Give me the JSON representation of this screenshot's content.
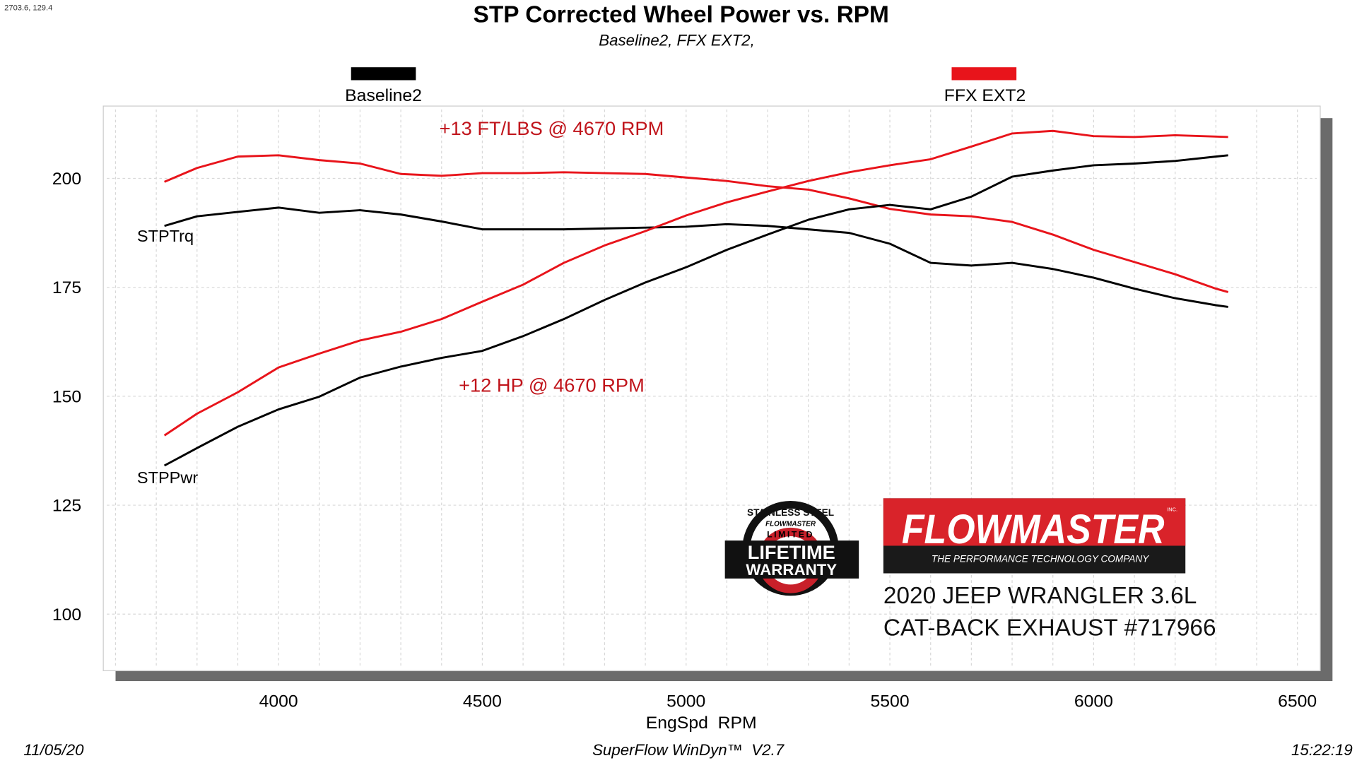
{
  "cursor_readout": "2703.6, 129.4",
  "footer": {
    "date": "11/05/20",
    "software": "SuperFlow WinDyn™  V2.7",
    "time": "15:22:19"
  },
  "branding": {
    "brand": "FLOWMASTER",
    "brand_mark": "INC.",
    "tagline": "THE PERFORMANCE TECHNOLOGY COMPANY",
    "warranty_badge": [
      "STAINLESS STEEL",
      "FLOWMASTER",
      "LIMITED",
      "LIFETIME",
      "WARRANTY"
    ],
    "vehicle": "2020 JEEP WRANGLER 3.6L",
    "product": "CAT-BACK EXHAUST #717966",
    "colors": {
      "brand_red": "#d9232a",
      "brand_black": "#1a1a1a"
    }
  },
  "chart_data": {
    "type": "line",
    "title": "STP Corrected Wheel Power vs. RPM",
    "subtitle": "Baseline2, FFX EXT2,",
    "xlabel": "EngSpd  RPM",
    "ylabel": "",
    "xlim": [
      3570,
      6556
    ],
    "ylim": [
      87,
      216.6
    ],
    "xticks": [
      4000,
      4500,
      5000,
      5500,
      6000,
      6500
    ],
    "yticks": [
      100,
      125,
      150,
      175,
      200
    ],
    "grid": true,
    "legend_placement": "top",
    "legend": [
      {
        "name": "Baseline2",
        "color": "#000000"
      },
      {
        "name": "FFX EXT2",
        "color": "#e8141b"
      }
    ],
    "curve_labels": [
      {
        "text": "STPTrq",
        "x": 3700,
        "y": 185.5
      },
      {
        "text": "STPPwr",
        "x": 3700,
        "y": 130
      }
    ],
    "annotations": [
      {
        "text": "+13 FT/LBS @ 4670 RPM",
        "x": 4670,
        "y": 210,
        "color": "#c0141b"
      },
      {
        "text": "+12 HP @ 4670 RPM",
        "x": 4670,
        "y": 151,
        "color": "#c0141b"
      }
    ],
    "x": [
      3720,
      3800,
      3900,
      4000,
      4100,
      4200,
      4300,
      4400,
      4500,
      4600,
      4700,
      4800,
      4900,
      5000,
      5100,
      5200,
      5300,
      5400,
      5500,
      5600,
      5700,
      5800,
      5900,
      6000,
      6100,
      6200,
      6300,
      6330
    ],
    "series": [
      {
        "name": "FFX EXT2",
        "quantity": "STPTrq",
        "color": "#e8141b",
        "values": [
          199.2,
          202.4,
          205,
          205.3,
          204.2,
          203.4,
          201,
          200.6,
          201.2,
          201.2,
          201.4,
          201.2,
          201,
          200.2,
          199.4,
          198.2,
          197.4,
          195.4,
          193,
          191.7,
          191.3,
          190,
          187.1,
          183.6,
          180.8,
          178,
          174.7,
          173.9
        ]
      },
      {
        "name": "Baseline2",
        "quantity": "STPTrq",
        "color": "#000000",
        "values": [
          189.1,
          191.3,
          192.3,
          193.3,
          192.1,
          192.7,
          191.7,
          190.1,
          188.3,
          188.3,
          188.3,
          188.5,
          188.7,
          188.9,
          189.5,
          189.1,
          188.3,
          187.5,
          185,
          180.6,
          180,
          180.6,
          179.2,
          177.2,
          174.7,
          172.5,
          170.9,
          170.5
        ]
      },
      {
        "name": "FFX EXT2",
        "quantity": "STPPwr",
        "color": "#e8141b",
        "values": [
          141,
          146,
          150.9,
          156.6,
          159.8,
          162.8,
          164.8,
          167.7,
          171.7,
          175.6,
          180.6,
          184.6,
          187.9,
          191.5,
          194.5,
          197,
          199.4,
          201.4,
          203,
          204.4,
          207.3,
          210.3,
          210.9,
          209.7,
          209.5,
          209.9,
          209.6,
          209.5
        ]
      },
      {
        "name": "Baseline2",
        "quantity": "STPPwr",
        "color": "#000000",
        "values": [
          134.1,
          138.1,
          143,
          147,
          149.9,
          154.3,
          156.8,
          158.8,
          160.4,
          163.8,
          167.7,
          172.1,
          176.1,
          179.6,
          183.6,
          187.1,
          190.5,
          192.9,
          193.9,
          192.9,
          195.8,
          200.4,
          201.8,
          203,
          203.4,
          204,
          205,
          205.3
        ]
      }
    ]
  }
}
